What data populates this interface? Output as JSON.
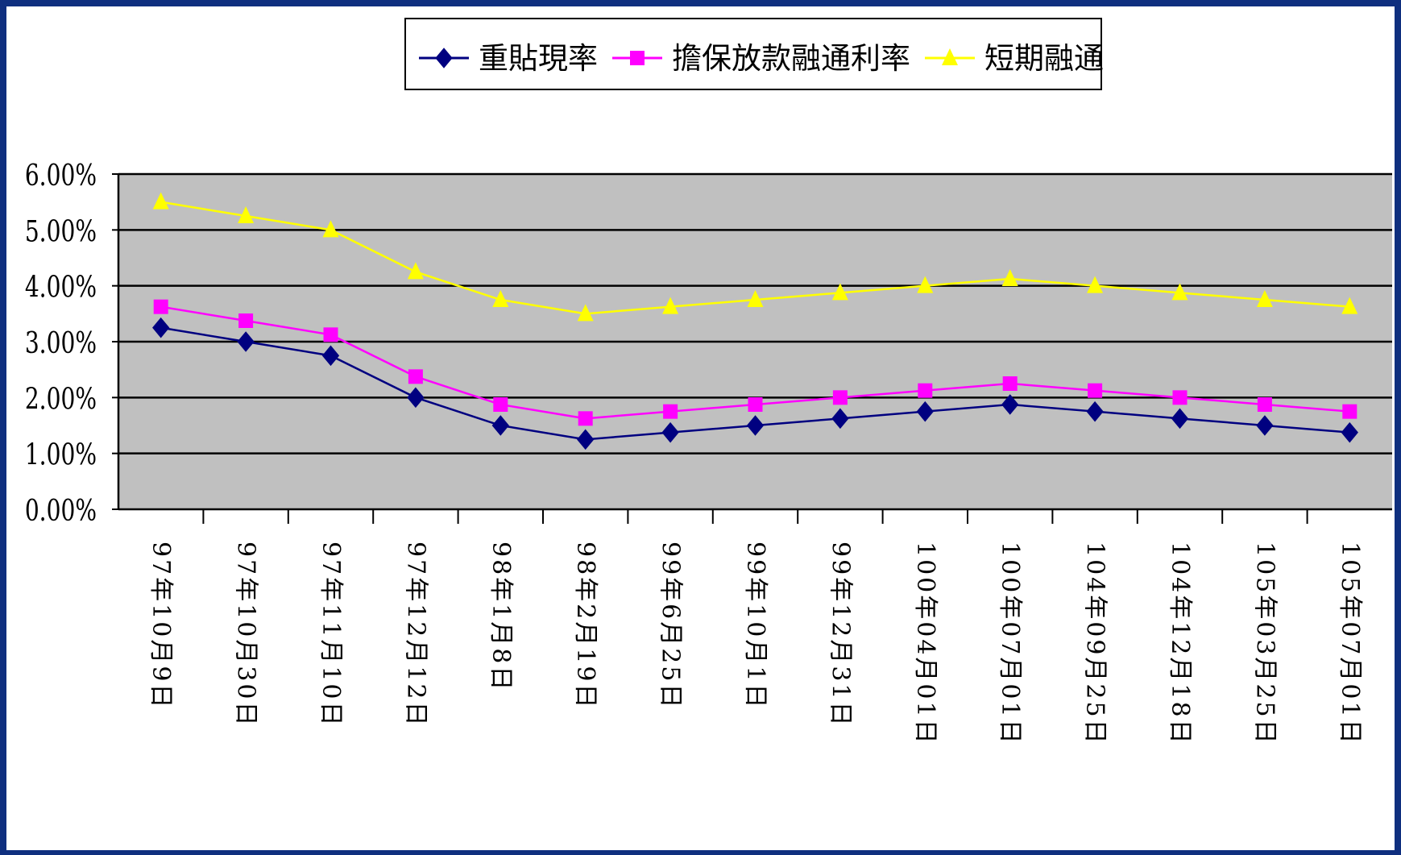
{
  "chart_data": {
    "type": "line",
    "title": "",
    "xlabel": "",
    "ylabel": "",
    "categories": [
      "97年10月9日",
      "97年10月30日",
      "97年11月10日",
      "97年12月12日",
      "98年1月8日",
      "98年2月19日",
      "99年6月25日",
      "99年10月1日",
      "99年12月31日",
      "100年04月01日",
      "100年07月01日",
      "104年09月25日",
      "104年12月18日",
      "105年03月25日",
      "105年07月01日"
    ],
    "ylim": [
      0,
      6
    ],
    "y_ticks": [
      "0.00%",
      "1.00%",
      "2.00%",
      "3.00%",
      "4.00%",
      "5.00%",
      "6.00%"
    ],
    "grid": true,
    "legend_position": "top-center",
    "plot_background": "#c0c0c0",
    "series": [
      {
        "name": "重貼現率",
        "color": "#000080",
        "marker": "diamond",
        "values": [
          3.25,
          3.0,
          2.75,
          2.0,
          1.5,
          1.25,
          1.375,
          1.5,
          1.625,
          1.75,
          1.875,
          1.75,
          1.625,
          1.5,
          1.375
        ]
      },
      {
        "name": "擔保放款融通利率",
        "color": "#ff00ff",
        "marker": "square",
        "values": [
          3.625,
          3.375,
          3.125,
          2.375,
          1.875,
          1.625,
          1.75,
          1.875,
          2.0,
          2.125,
          2.25,
          2.125,
          2.0,
          1.875,
          1.75
        ]
      },
      {
        "name": "短期融通利率",
        "color": "#ffff00",
        "marker": "triangle",
        "values": [
          5.5,
          5.25,
          5.0,
          4.25,
          3.75,
          3.5,
          3.625,
          3.75,
          3.875,
          4.0,
          4.125,
          4.0,
          3.875,
          3.75,
          3.625
        ]
      }
    ]
  }
}
